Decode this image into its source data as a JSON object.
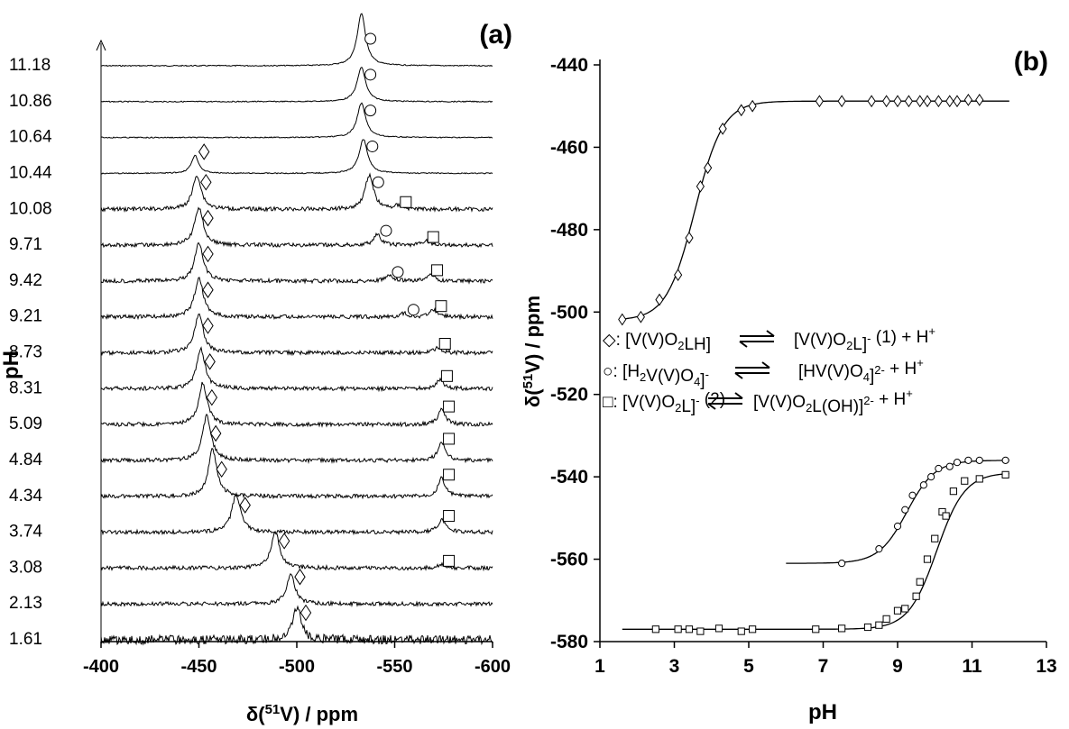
{
  "panel_a": {
    "label": "(a)",
    "xlabel": "δ(51V) / ppm",
    "xlabel_main": "δ(",
    "xlabel_sup": "51",
    "xlabel_tail": "V) / ppm",
    "ylabel": "pH",
    "xticks": [
      "-400",
      "-450",
      "-500",
      "-550",
      "-600"
    ],
    "traces": [
      {
        "ph": "11.18",
        "peaks": [
          {
            "shift": -533,
            "h": 58,
            "marker": "circle"
          }
        ]
      },
      {
        "ph": "10.86",
        "peaks": [
          {
            "shift": -533,
            "h": 38,
            "marker": "circle"
          }
        ]
      },
      {
        "ph": "10.64",
        "peaks": [
          {
            "shift": -533,
            "h": 38,
            "marker": "circle"
          }
        ]
      },
      {
        "ph": "10.44",
        "peaks": [
          {
            "shift": -448,
            "h": 20,
            "marker": "diamond"
          },
          {
            "shift": -534,
            "h": 38,
            "marker": "circle"
          }
        ]
      },
      {
        "ph": "10.08",
        "peaks": [
          {
            "shift": -449,
            "h": 38,
            "marker": "diamond"
          },
          {
            "shift": -537,
            "h": 38,
            "marker": "circle"
          },
          {
            "shift": -552,
            "h": 4,
            "marker": "square"
          }
        ]
      },
      {
        "ph": "9.71",
        "peaks": [
          {
            "shift": -450,
            "h": 42,
            "marker": "diamond"
          },
          {
            "shift": -541,
            "h": 12,
            "marker": "circle"
          },
          {
            "shift": -566,
            "h": 5,
            "marker": "square"
          }
        ]
      },
      {
        "ph": "9.42",
        "peaks": [
          {
            "shift": -450,
            "h": 42,
            "marker": "diamond"
          },
          {
            "shift": -547,
            "h": 6,
            "marker": "circle"
          },
          {
            "shift": -568,
            "h": 8,
            "marker": "square"
          }
        ]
      },
      {
        "ph": "9.21",
        "peaks": [
          {
            "shift": -450,
            "h": 44,
            "marker": "diamond"
          },
          {
            "shift": -555,
            "h": 4,
            "marker": "circle"
          },
          {
            "shift": -570,
            "h": 8,
            "marker": "square"
          }
        ]
      },
      {
        "ph": "8.73",
        "peaks": [
          {
            "shift": -450,
            "h": 44,
            "marker": "diamond"
          },
          {
            "shift": -572,
            "h": 6,
            "marker": "square"
          }
        ]
      },
      {
        "ph": "8.31",
        "peaks": [
          {
            "shift": -451,
            "h": 44,
            "marker": "diamond"
          },
          {
            "shift": -573,
            "h": 10,
            "marker": "square"
          }
        ]
      },
      {
        "ph": "5.09",
        "peaks": [
          {
            "shift": -452,
            "h": 46,
            "marker": "diamond"
          },
          {
            "shift": -574,
            "h": 16,
            "marker": "square"
          }
        ]
      },
      {
        "ph": "4.84",
        "peaks": [
          {
            "shift": -454,
            "h": 50,
            "marker": "diamond"
          },
          {
            "shift": -574,
            "h": 20,
            "marker": "square"
          }
        ]
      },
      {
        "ph": "4.34",
        "peaks": [
          {
            "shift": -457,
            "h": 52,
            "marker": "diamond"
          },
          {
            "shift": -574,
            "h": 20,
            "marker": "square"
          }
        ]
      },
      {
        "ph": "3.74",
        "peaks": [
          {
            "shift": -469,
            "h": 42,
            "marker": "diamond"
          },
          {
            "shift": -574,
            "h": 14,
            "marker": "square"
          }
        ]
      },
      {
        "ph": "3.08",
        "peaks": [
          {
            "shift": -489,
            "h": 40,
            "marker": "diamond"
          },
          {
            "shift": -574,
            "h": 4,
            "marker": "square"
          }
        ]
      },
      {
        "ph": "2.13",
        "peaks": [
          {
            "shift": -497,
            "h": 32,
            "marker": "diamond"
          }
        ]
      },
      {
        "ph": "1.61",
        "peaks": [
          {
            "shift": -500,
            "h": 36,
            "marker": "diamond"
          }
        ]
      }
    ]
  },
  "panel_b": {
    "label": "(b)",
    "xlabel": "pH",
    "ylabel": "δ(51V) / ppm",
    "ylabel_main": "δ(",
    "ylabel_sup": "51",
    "ylabel_tail": "V) / ppm",
    "xticks": [
      "1",
      "3",
      "5",
      "7",
      "9",
      "11",
      "13"
    ],
    "yticks": [
      "-440",
      "-460",
      "-480",
      "-500",
      "-520",
      "-540",
      "-560",
      "-580"
    ],
    "legend": [
      {
        "marker": "diamond",
        "text": "◇: [V(V)O₂LH] ⇌ [V(V)O₂L]⁻ (1) + H⁺"
      },
      {
        "marker": "circle",
        "text": "○: [H₂V(V)O₄]⁻ ⇌ [HV(V)O₄]²⁻ + H⁺"
      },
      {
        "marker": "square",
        "text": "□: [V(V)O₂L]⁻ (2) ⇌ [V(V)O₂L(OH)]²⁻ + H⁺"
      }
    ]
  },
  "chart_data": [
    {
      "type": "line",
      "title": "(a)",
      "xlabel": "δ(51V) / ppm",
      "ylabel": "pH",
      "xlim": [
        -400,
        -600
      ],
      "series_labels": [
        "11.18",
        "10.86",
        "10.64",
        "10.44",
        "10.08",
        "9.71",
        "9.42",
        "9.21",
        "8.73",
        "8.31",
        "5.09",
        "4.84",
        "4.34",
        "3.74",
        "3.08",
        "2.13",
        "1.61"
      ]
    },
    {
      "type": "scatter",
      "title": "(b)",
      "xlabel": "pH",
      "ylabel": "δ(51V) / ppm",
      "xlim": [
        1,
        13
      ],
      "ylim": [
        -580,
        -435
      ],
      "series": [
        {
          "name": "diamond",
          "marker": "diamond",
          "x": [
            1.6,
            2.1,
            2.6,
            3.1,
            3.4,
            3.7,
            3.9,
            4.3,
            4.8,
            5.1,
            6.9,
            7.5,
            8.3,
            8.7,
            9.0,
            9.3,
            9.6,
            9.8,
            10.1,
            10.4,
            10.6,
            10.9,
            11.2
          ],
          "y": [
            -501.8,
            -501.2,
            -497.0,
            -491.0,
            -482.0,
            -469.5,
            -465.0,
            -455.5,
            -451.0,
            -450.0,
            -448.8,
            -448.8,
            -448.8,
            -448.8,
            -448.8,
            -448.8,
            -448.8,
            -448.8,
            -448.8,
            -448.8,
            -448.8,
            -448.5,
            -448.5
          ]
        },
        {
          "name": "circle",
          "marker": "circle",
          "x": [
            7.5,
            8.5,
            9.0,
            9.2,
            9.4,
            9.7,
            9.9,
            10.1,
            10.4,
            10.6,
            10.9,
            11.2,
            11.9
          ],
          "y": [
            -561.0,
            -557.5,
            -552.0,
            -548.0,
            -544.5,
            -542.0,
            -540.0,
            -538.0,
            -537.5,
            -536.5,
            -536.0,
            -536.0,
            -536.0
          ],
          "curve_start_x": 6.0
        },
        {
          "name": "square",
          "marker": "square",
          "x": [
            2.5,
            3.1,
            3.4,
            3.7,
            4.2,
            4.8,
            5.1,
            6.8,
            7.5,
            8.2,
            8.5,
            8.7,
            9.0,
            9.2,
            9.5,
            9.6,
            9.8,
            10.0,
            10.2,
            10.3,
            10.5,
            10.8,
            11.2,
            11.9
          ],
          "y": [
            -577.0,
            -577.0,
            -577.0,
            -577.5,
            -576.8,
            -577.5,
            -577.0,
            -577.0,
            -576.8,
            -576.5,
            -576.0,
            -574.5,
            -572.5,
            -572.0,
            -569.0,
            -565.5,
            -560.0,
            -555.0,
            -548.5,
            -549.5,
            -543.5,
            -541.0,
            -540.5,
            -539.5
          ],
          "curve_start_x": 1.6
        }
      ]
    }
  ]
}
